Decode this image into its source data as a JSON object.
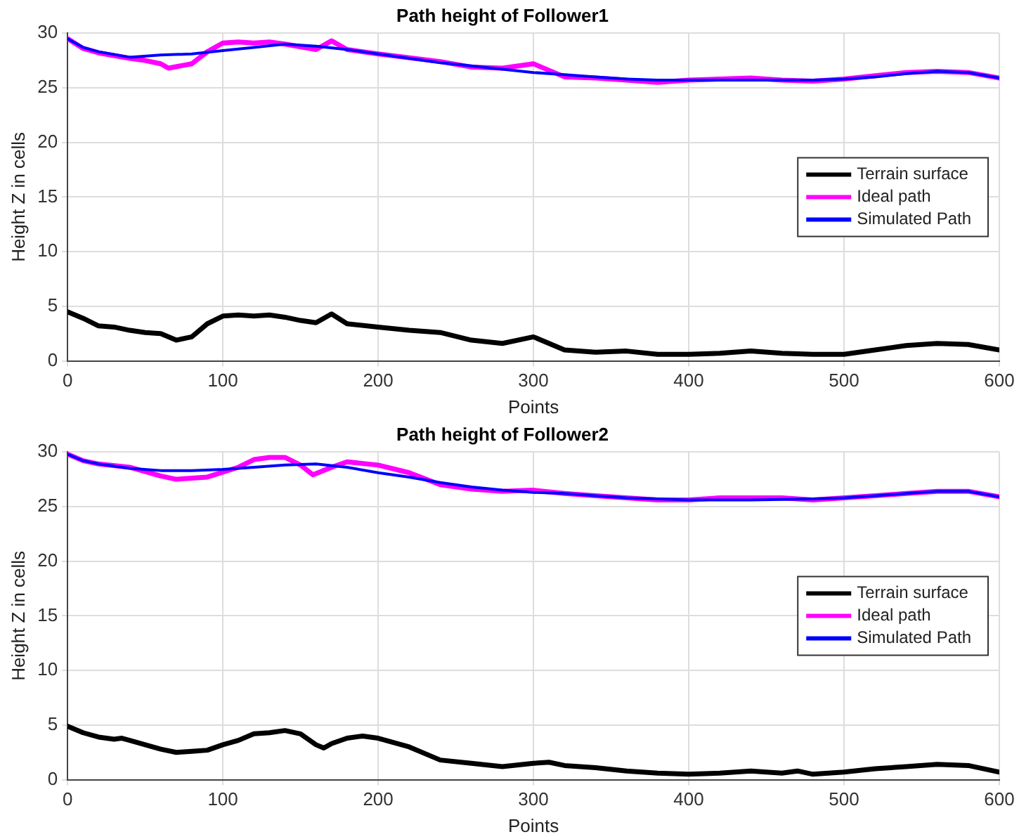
{
  "chart_data": [
    {
      "type": "line",
      "title": "Path height of Follower1",
      "xlabel": "Points",
      "ylabel": "Height Z in cells",
      "xlim": [
        0,
        600
      ],
      "xticks": [
        0,
        100,
        200,
        300,
        400,
        500,
        600
      ],
      "ylim": [
        0,
        30
      ],
      "yticks": [
        0,
        5,
        10,
        15,
        20,
        25,
        30
      ],
      "grid": true,
      "legend": "right",
      "marker": "none",
      "line_style": "solid",
      "series": [
        {
          "name": "Terrain surface",
          "color": "#000000",
          "x": [
            0,
            10,
            20,
            30,
            40,
            50,
            60,
            70,
            80,
            90,
            100,
            110,
            120,
            130,
            140,
            150,
            160,
            170,
            180,
            200,
            220,
            240,
            260,
            280,
            300,
            320,
            340,
            360,
            380,
            400,
            420,
            440,
            460,
            480,
            500,
            520,
            540,
            560,
            580,
            600
          ],
          "values": [
            4.5,
            3.9,
            3.2,
            3.1,
            2.8,
            2.6,
            2.5,
            1.9,
            2.2,
            3.4,
            4.1,
            4.2,
            4.1,
            4.2,
            4.0,
            3.7,
            3.5,
            4.3,
            3.4,
            3.1,
            2.8,
            2.6,
            1.9,
            1.6,
            2.2,
            1.0,
            0.8,
            0.9,
            0.6,
            0.6,
            0.7,
            0.9,
            0.7,
            0.6,
            0.6,
            1.0,
            1.4,
            1.6,
            1.5,
            1.0
          ]
        },
        {
          "name": "Ideal path",
          "color": "#ff00ff",
          "x": [
            0,
            10,
            20,
            40,
            50,
            60,
            65,
            80,
            90,
            100,
            110,
            120,
            130,
            140,
            160,
            170,
            180,
            200,
            240,
            260,
            280,
            300,
            320,
            340,
            360,
            380,
            400,
            420,
            440,
            460,
            480,
            500,
            520,
            540,
            560,
            580,
            600
          ],
          "values": [
            29.5,
            28.6,
            28.2,
            27.7,
            27.5,
            27.2,
            26.8,
            27.2,
            28.3,
            29.1,
            29.2,
            29.1,
            29.2,
            29.0,
            28.5,
            29.3,
            28.5,
            28.1,
            27.4,
            26.9,
            26.8,
            27.2,
            26.0,
            25.9,
            25.7,
            25.5,
            25.7,
            25.8,
            25.9,
            25.7,
            25.6,
            25.8,
            26.1,
            26.4,
            26.5,
            26.4,
            25.9
          ]
        },
        {
          "name": "Simulated Path",
          "color": "#0000ff",
          "x": [
            0,
            10,
            20,
            40,
            60,
            80,
            100,
            120,
            140,
            160,
            180,
            200,
            220,
            240,
            260,
            280,
            300,
            320,
            340,
            360,
            380,
            400,
            440,
            480,
            500,
            520,
            540,
            560,
            580,
            600
          ],
          "values": [
            29.5,
            28.7,
            28.3,
            27.8,
            28.0,
            28.1,
            28.4,
            28.7,
            29.0,
            28.8,
            28.5,
            28.1,
            27.7,
            27.3,
            27.0,
            26.7,
            26.4,
            26.2,
            26.0,
            25.8,
            25.7,
            25.7,
            25.7,
            25.7,
            25.8,
            26.0,
            26.3,
            26.5,
            26.4,
            25.9
          ]
        }
      ]
    },
    {
      "type": "line",
      "title": "Path height of Follower2",
      "xlabel": "Points",
      "ylabel": "Height Z in cells",
      "xlim": [
        0,
        600
      ],
      "xticks": [
        0,
        100,
        200,
        300,
        400,
        500,
        600
      ],
      "ylim": [
        0,
        30
      ],
      "yticks": [
        0,
        5,
        10,
        15,
        20,
        25,
        30
      ],
      "grid": true,
      "legend": "right",
      "marker": "none",
      "line_style": "solid",
      "series": [
        {
          "name": "Terrain surface",
          "color": "#000000",
          "x": [
            0,
            10,
            20,
            30,
            35,
            40,
            60,
            70,
            80,
            90,
            100,
            110,
            120,
            130,
            140,
            150,
            160,
            165,
            170,
            180,
            190,
            200,
            220,
            240,
            260,
            280,
            300,
            310,
            320,
            340,
            360,
            380,
            400,
            420,
            440,
            460,
            470,
            480,
            500,
            520,
            540,
            560,
            580,
            600
          ],
          "values": [
            4.9,
            4.3,
            3.9,
            3.7,
            3.8,
            3.6,
            2.8,
            2.5,
            2.6,
            2.7,
            3.2,
            3.6,
            4.2,
            4.3,
            4.5,
            4.2,
            3.2,
            2.9,
            3.3,
            3.8,
            4.0,
            3.8,
            3.0,
            1.8,
            1.5,
            1.2,
            1.5,
            1.6,
            1.3,
            1.1,
            0.8,
            0.6,
            0.5,
            0.6,
            0.8,
            0.6,
            0.8,
            0.5,
            0.7,
            1.0,
            1.2,
            1.4,
            1.3,
            0.7
          ]
        },
        {
          "name": "Ideal path",
          "color": "#ff00ff",
          "x": [
            0,
            10,
            20,
            40,
            60,
            70,
            90,
            110,
            120,
            130,
            140,
            150,
            158,
            170,
            180,
            200,
            220,
            240,
            260,
            280,
            300,
            320,
            340,
            360,
            380,
            400,
            420,
            440,
            460,
            480,
            500,
            520,
            540,
            560,
            580,
            600
          ],
          "values": [
            29.8,
            29.2,
            28.9,
            28.6,
            27.8,
            27.5,
            27.7,
            28.6,
            29.3,
            29.5,
            29.5,
            28.8,
            27.9,
            28.6,
            29.1,
            28.8,
            28.1,
            27.0,
            26.6,
            26.4,
            26.5,
            26.2,
            26.0,
            25.8,
            25.6,
            25.6,
            25.8,
            25.8,
            25.8,
            25.6,
            25.8,
            26.0,
            26.2,
            26.4,
            26.4,
            25.9
          ]
        },
        {
          "name": "Simulated Path",
          "color": "#0000ff",
          "x": [
            0,
            10,
            20,
            40,
            60,
            80,
            100,
            120,
            140,
            160,
            180,
            200,
            220,
            240,
            260,
            280,
            300,
            320,
            340,
            360,
            380,
            400,
            440,
            480,
            500,
            520,
            540,
            560,
            580,
            600
          ],
          "values": [
            29.8,
            29.2,
            28.9,
            28.5,
            28.3,
            28.3,
            28.4,
            28.6,
            28.8,
            28.9,
            28.6,
            28.1,
            27.7,
            27.2,
            26.8,
            26.5,
            26.3,
            26.2,
            26.0,
            25.8,
            25.7,
            25.6,
            25.6,
            25.7,
            25.8,
            26.0,
            26.2,
            26.4,
            26.4,
            25.9
          ]
        }
      ]
    }
  ]
}
